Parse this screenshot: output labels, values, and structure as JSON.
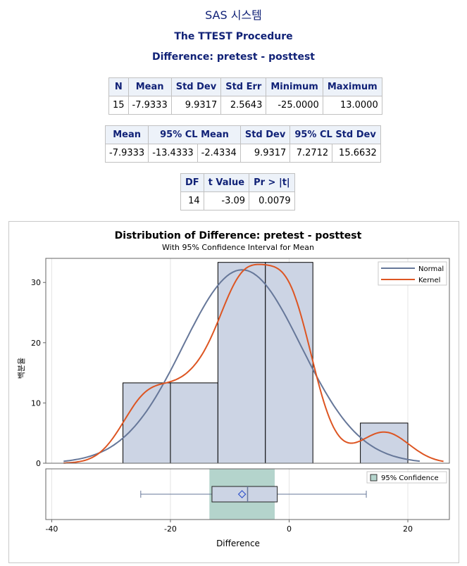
{
  "header": {
    "system_title": "SAS 시스템",
    "procedure_title": "The TTEST Procedure",
    "difference_title": "Difference: pretest - posttest"
  },
  "summary_table": {
    "headers": [
      "N",
      "Mean",
      "Std Dev",
      "Std Err",
      "Minimum",
      "Maximum"
    ],
    "row": [
      "15",
      "-7.9333",
      "9.9317",
      "2.5643",
      "-25.0000",
      "13.0000"
    ]
  },
  "ci_table": {
    "headers": [
      "Mean",
      "95% CL Mean",
      "Std Dev",
      "95% CL Std Dev"
    ],
    "row": [
      "-7.9333",
      "-13.4333",
      "-2.4334",
      "9.9317",
      "7.2712",
      "15.6632"
    ]
  },
  "test_table": {
    "headers": [
      "DF",
      "t Value",
      "Pr > |t|"
    ],
    "row": [
      "14",
      "-3.09",
      "0.0079"
    ]
  },
  "chart_data": {
    "type": "bar",
    "title": "Distribution of Difference: pretest - posttest",
    "subtitle": "With 95% Confidence Interval for Mean",
    "xlabel": "Difference",
    "ylabel": "백분율",
    "xlim": [
      -41,
      27
    ],
    "ylim": [
      0,
      34
    ],
    "xticks": [
      -40,
      -20,
      0,
      20
    ],
    "yticks": [
      0,
      10,
      20,
      30
    ],
    "histogram": [
      {
        "x0": -28,
        "x1": -20,
        "percent": 13.333
      },
      {
        "x0": -20,
        "x1": -12,
        "percent": 13.333
      },
      {
        "x0": -12,
        "x1": -4,
        "percent": 33.333
      },
      {
        "x0": -4,
        "x1": 4,
        "percent": 33.333
      },
      {
        "x0": 4,
        "x1": 12,
        "percent": 0
      },
      {
        "x0": 12,
        "x1": 20,
        "percent": 6.667
      }
    ],
    "series": [
      {
        "name": "Normal",
        "color": "#667799",
        "mean": -7.9333,
        "sd": 9.9317,
        "range": [
          -38,
          22
        ],
        "peak_percent": 32.1
      },
      {
        "name": "Kernel",
        "color": "#dd5522",
        "range": [
          -38,
          26
        ],
        "bandwidth": 4.2,
        "peak_percent": 33.0
      }
    ],
    "legend_position": "top-right",
    "confidence": {
      "label": "95% Confidence",
      "lower": -13.4333,
      "upper": -2.4334,
      "color": "#b4d4cc"
    },
    "boxplot": {
      "min": -25.0,
      "q1": -13.0,
      "median": -7.0,
      "q3": -2.0,
      "max": 13.0,
      "mean": -7.9333
    },
    "grid": true,
    "colors": {
      "bar_fill": "#ccd4e4",
      "bar_stroke": "#000000",
      "grid": "#e4e4e4",
      "axis": "#666666"
    }
  }
}
